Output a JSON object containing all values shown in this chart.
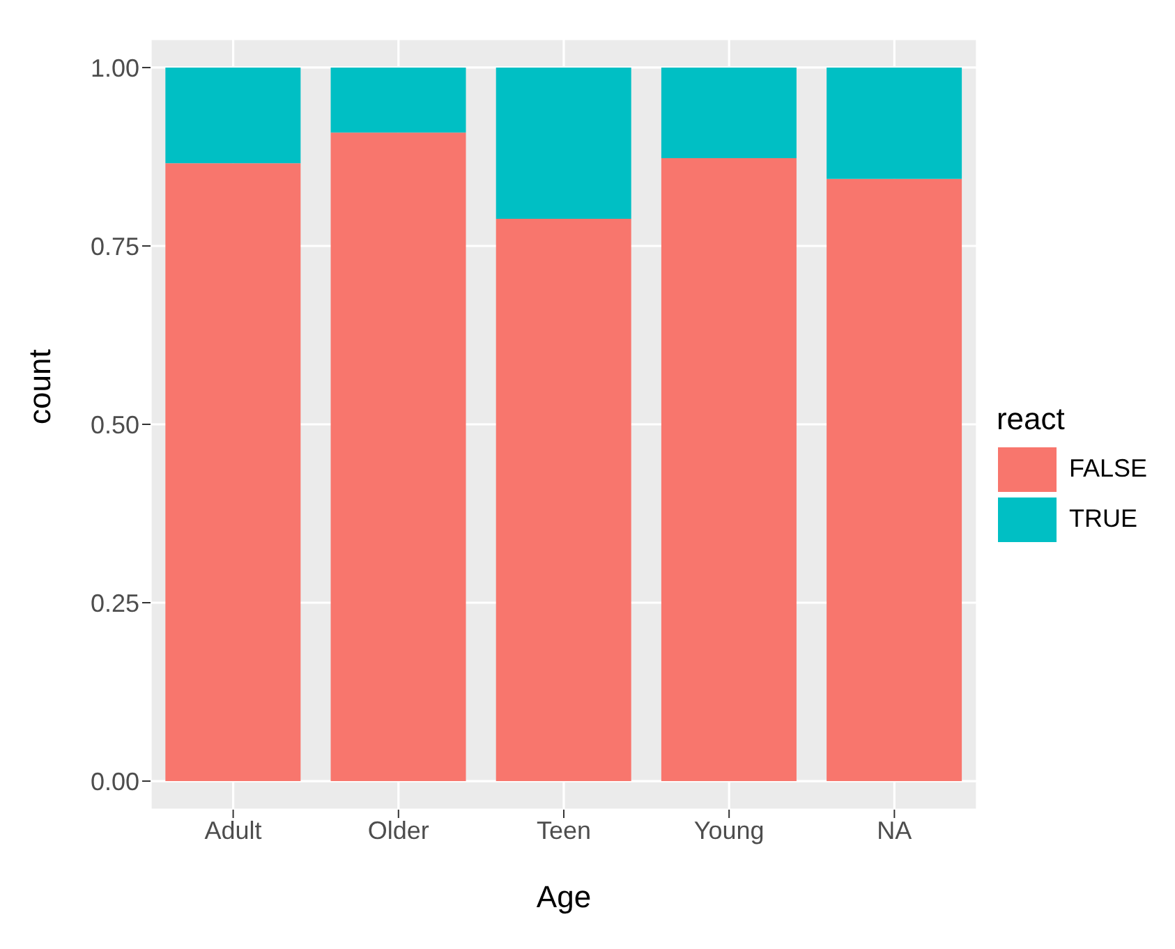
{
  "chart_data": {
    "type": "bar",
    "xlabel": "Age",
    "ylabel": "count",
    "legend_title": "react",
    "categories": [
      "Adult",
      "Older",
      "Teen",
      "Young",
      "NA"
    ],
    "stacked": true,
    "series": [
      {
        "name": "FALSE",
        "color": "#f8766d",
        "values": [
          0.866,
          0.909,
          0.788,
          0.873,
          0.844
        ]
      },
      {
        "name": "TRUE",
        "color": "#00bfc4",
        "values": [
          0.134,
          0.091,
          0.212,
          0.127,
          0.156
        ]
      }
    ],
    "ylim": [
      -0.04,
      1.04
    ],
    "yticks": [
      {
        "value": 0,
        "label": "0.00"
      },
      {
        "value": 0.25,
        "label": "0.25"
      },
      {
        "value": 0.5,
        "label": "0.50"
      },
      {
        "value": 0.75,
        "label": "0.75"
      },
      {
        "value": 1,
        "label": "1.00"
      }
    ],
    "grid": true,
    "legend": "right"
  }
}
